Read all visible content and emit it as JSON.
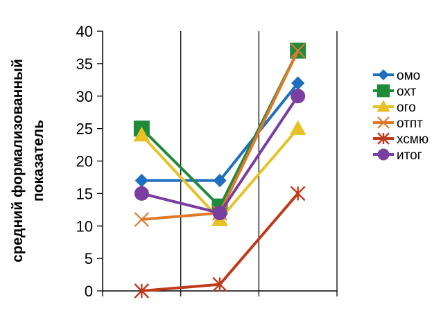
{
  "chart_data": {
    "type": "line",
    "title": "",
    "xlabel": "",
    "ylabel_lines": [
      "средний формализованный",
      "показатель"
    ],
    "categories": [
      "",
      "",
      ""
    ],
    "ylim": [
      0,
      40
    ],
    "yticks": [
      0,
      5,
      10,
      15,
      20,
      25,
      30,
      35,
      40
    ],
    "grid": "vertical",
    "legend_position": "right",
    "series": [
      {
        "name": "омо",
        "values": [
          17,
          17,
          32
        ],
        "color": "#1f6fbf",
        "marker": "diamond"
      },
      {
        "name": "охт",
        "values": [
          25,
          13,
          37
        ],
        "color": "#1e8a3a",
        "marker": "square"
      },
      {
        "name": "ого",
        "values": [
          24,
          11,
          25
        ],
        "color": "#e6c227",
        "marker": "triangle"
      },
      {
        "name": "отпт",
        "values": [
          11,
          12,
          37
        ],
        "color": "#e0792a",
        "marker": "x"
      },
      {
        "name": "хсмю",
        "values": [
          0,
          1,
          15
        ],
        "color": "#c0391b",
        "marker": "star"
      },
      {
        "name": "итог",
        "values": [
          15,
          12,
          30
        ],
        "color": "#7a3ea0",
        "marker": "circle"
      }
    ]
  }
}
